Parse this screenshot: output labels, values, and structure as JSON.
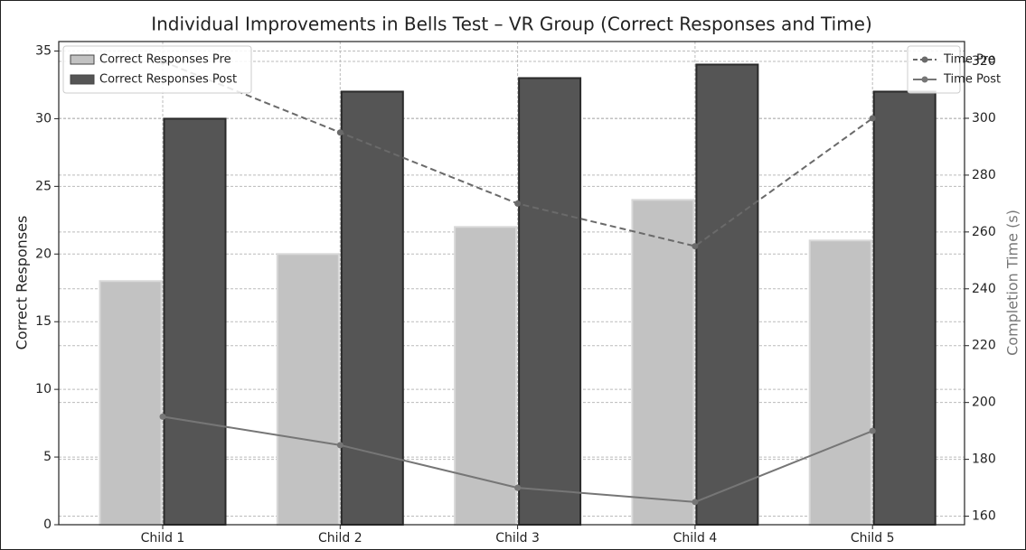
{
  "chart_data": {
    "type": "bar",
    "title": "Individual Improvements in Bells Test – VR Group (Correct Responses and Time)",
    "categories": [
      "Child 1",
      "Child 2",
      "Child 3",
      "Child 4",
      "Child 5"
    ],
    "ylabel": "Correct Responses",
    "y2label": "Completion Time (s)",
    "ylim": [
      0,
      35.7
    ],
    "yticks": [
      0,
      5,
      10,
      15,
      20,
      25,
      30,
      35
    ],
    "y2lim": [
      157,
      327
    ],
    "y2ticks": [
      160,
      180,
      200,
      220,
      240,
      260,
      280,
      300,
      320
    ],
    "grid": true,
    "legend": "upper left",
    "legend2": "upper right",
    "series": [
      {
        "name": "Correct Responses Pre",
        "type": "bar",
        "color": "#c2c2c2",
        "values": [
          18,
          20,
          22,
          24,
          21
        ]
      },
      {
        "name": "Correct Responses Post",
        "type": "bar",
        "color": "#555555",
        "values": [
          30,
          32,
          33,
          34,
          32
        ]
      },
      {
        "name": "Time Pre",
        "type": "line",
        "dashed": true,
        "axis": "y2",
        "color": "#6a6a6a",
        "values": [
          320,
          295,
          270,
          255,
          300
        ]
      },
      {
        "name": "Time Post",
        "type": "line",
        "axis": "y2",
        "color": "#767676",
        "values": [
          195,
          185,
          170,
          165,
          190
        ]
      }
    ]
  }
}
